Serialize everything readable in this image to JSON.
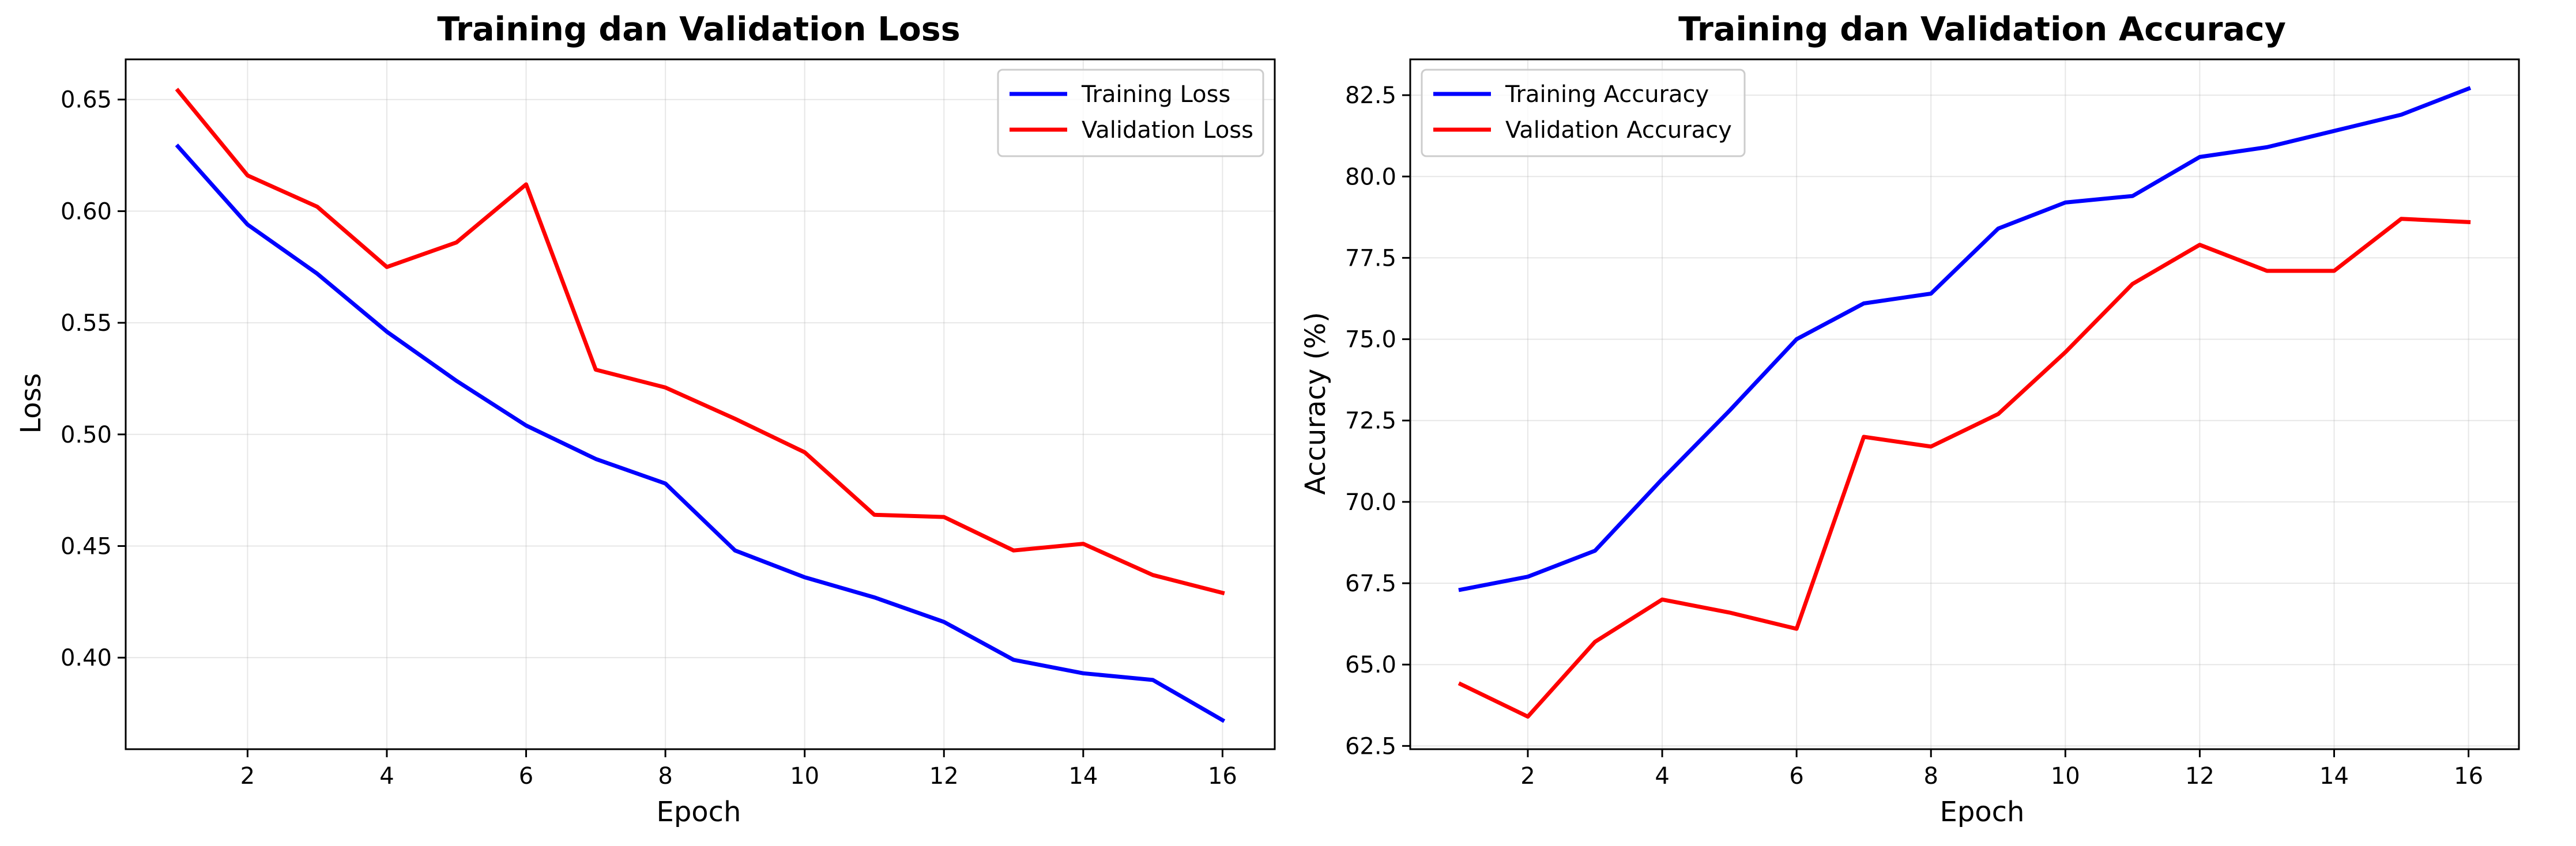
{
  "chart_data": [
    {
      "type": "line",
      "title": "Training dan Validation Loss",
      "xlabel": "Epoch",
      "ylabel": "Loss",
      "x": [
        1,
        2,
        3,
        4,
        5,
        6,
        7,
        8,
        9,
        10,
        11,
        12,
        13,
        14,
        15,
        16
      ],
      "xticks": [
        2,
        4,
        6,
        8,
        10,
        12,
        14,
        16
      ],
      "yticks": [
        0.4,
        0.45,
        0.5,
        0.55,
        0.6,
        0.65
      ],
      "ytick_labels": [
        "0.40",
        "0.45",
        "0.50",
        "0.55",
        "0.60",
        "0.65"
      ],
      "xlim": [
        0.25,
        16.75
      ],
      "ylim": [
        0.359,
        0.668
      ],
      "grid": true,
      "legend_position": "upper right",
      "series": [
        {
          "name": "Training Loss",
          "color": "#0000ff",
          "values": [
            0.629,
            0.594,
            0.572,
            0.546,
            0.524,
            0.504,
            0.489,
            0.478,
            0.448,
            0.436,
            0.427,
            0.416,
            0.399,
            0.393,
            0.39,
            0.372
          ]
        },
        {
          "name": "Validation Loss",
          "color": "#ff0000",
          "values": [
            0.654,
            0.616,
            0.602,
            0.575,
            0.586,
            0.612,
            0.529,
            0.521,
            0.507,
            0.492,
            0.464,
            0.463,
            0.448,
            0.451,
            0.437,
            0.429
          ]
        }
      ]
    },
    {
      "type": "line",
      "title": "Training dan Validation Accuracy",
      "xlabel": "Epoch",
      "ylabel": "Accuracy (%)",
      "x": [
        1,
        2,
        3,
        4,
        5,
        6,
        7,
        8,
        9,
        10,
        11,
        12,
        13,
        14,
        15,
        16
      ],
      "xticks": [
        2,
        4,
        6,
        8,
        10,
        12,
        14,
        16
      ],
      "yticks": [
        62.5,
        65.0,
        67.5,
        70.0,
        72.5,
        75.0,
        77.5,
        80.0,
        82.5
      ],
      "ytick_labels": [
        "62.5",
        "65.0",
        "67.5",
        "70.0",
        "72.5",
        "75.0",
        "77.5",
        "80.0",
        "82.5"
      ],
      "xlim": [
        0.25,
        16.75
      ],
      "ylim": [
        62.4,
        83.6
      ],
      "grid": true,
      "legend_position": "upper left",
      "series": [
        {
          "name": "Training Accuracy",
          "color": "#0000ff",
          "values": [
            67.3,
            67.7,
            68.5,
            70.7,
            72.8,
            75.0,
            76.1,
            76.4,
            78.4,
            79.2,
            79.4,
            80.6,
            80.9,
            81.4,
            81.9,
            82.7
          ]
        },
        {
          "name": "Validation Accuracy",
          "color": "#ff0000",
          "values": [
            64.4,
            63.4,
            65.7,
            67.0,
            66.6,
            66.1,
            72.0,
            71.7,
            72.7,
            74.6,
            76.7,
            77.9,
            77.1,
            77.1,
            78.7,
            78.6
          ]
        }
      ]
    }
  ]
}
